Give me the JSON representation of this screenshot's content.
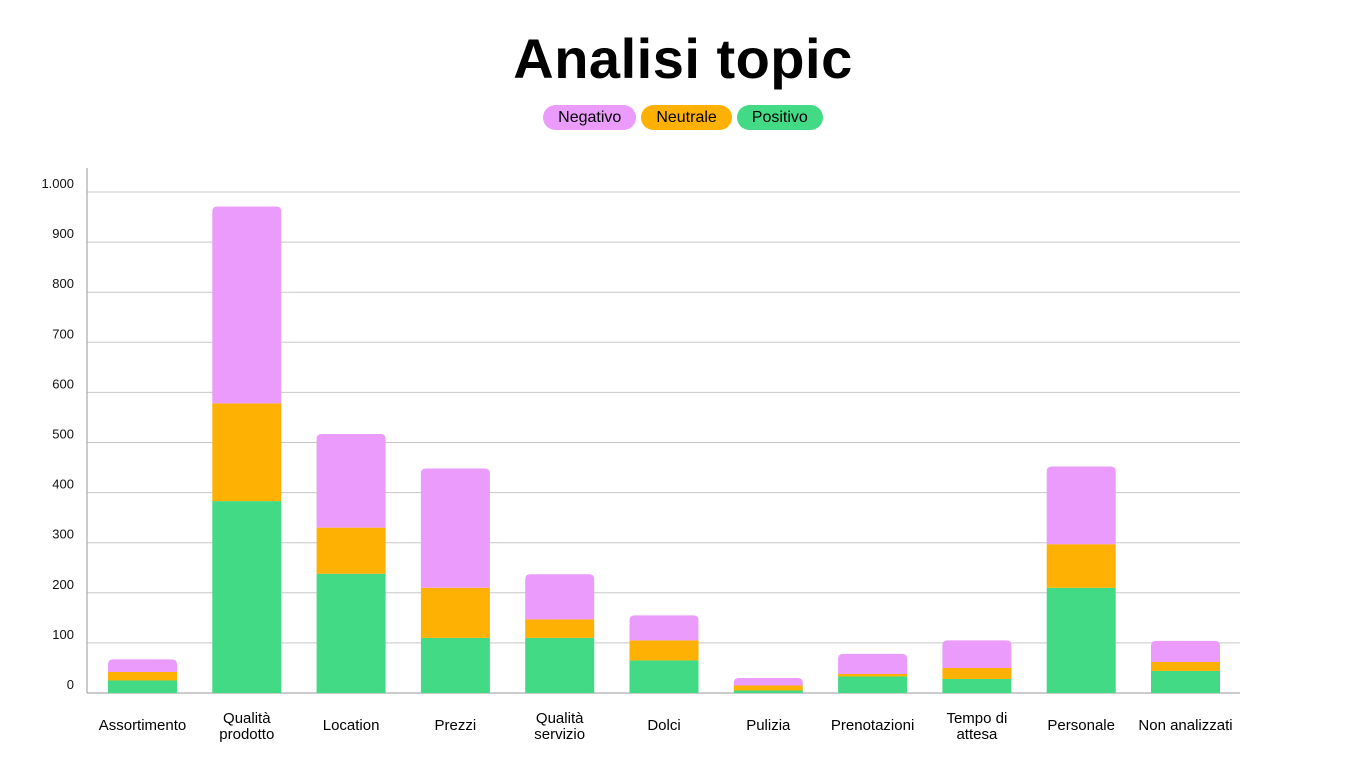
{
  "chart_data": {
    "type": "bar",
    "stacked": true,
    "title": "Analisi topic",
    "categories": [
      [
        "Assortimento"
      ],
      [
        "Qualità",
        "prodotto"
      ],
      [
        "Location"
      ],
      [
        "Prezzi"
      ],
      [
        "Qualità",
        "servizio"
      ],
      [
        "Dolci"
      ],
      [
        "Pulizia"
      ],
      [
        "Prenotazioni"
      ],
      [
        "Tempo di",
        "attesa"
      ],
      [
        "Personale"
      ],
      [
        "Non analizzati"
      ]
    ],
    "series": [
      {
        "name": "Positivo",
        "color": "#43DA85",
        "values": [
          25,
          383,
          238,
          110,
          110,
          65,
          5,
          33,
          28,
          210,
          44
        ]
      },
      {
        "name": "Neutrale",
        "color": "#FEB003",
        "values": [
          17,
          195,
          92,
          100,
          37,
          40,
          10,
          5,
          22,
          87,
          18
        ]
      },
      {
        "name": "Negativo",
        "color": "#EA9BFB",
        "values": [
          25,
          393,
          187,
          238,
          90,
          50,
          15,
          40,
          55,
          155,
          42
        ]
      }
    ],
    "legend_order": [
      "Negativo",
      "Neutrale",
      "Positivo"
    ],
    "legend_position": "top-center",
    "ylim": [
      0,
      1000
    ],
    "yticks": [
      0,
      100,
      200,
      300,
      400,
      500,
      600,
      700,
      800,
      900,
      1000
    ],
    "ytick_labels": [
      "0",
      "100",
      "200",
      "300",
      "400",
      "500",
      "600",
      "700",
      "800",
      "900",
      "1.000"
    ],
    "grid": true
  }
}
